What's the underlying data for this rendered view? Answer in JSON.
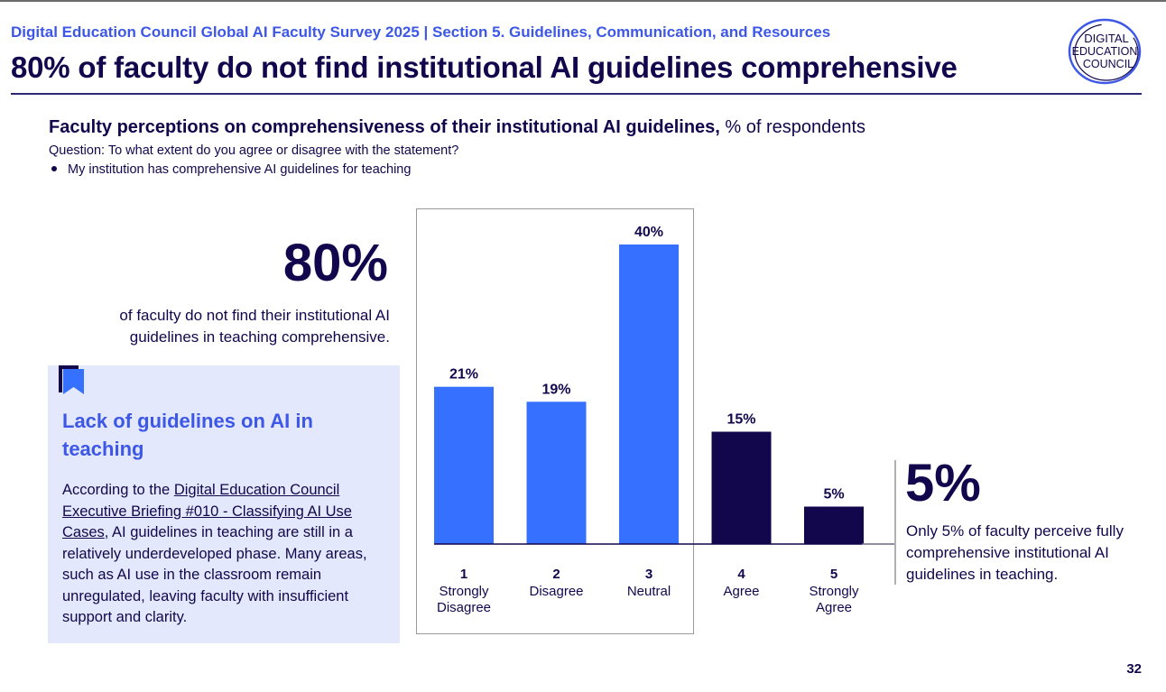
{
  "header": {
    "kicker": "Digital Education Council Global AI Faculty Survey 2025 | Section 5. Guidelines, Communication, and Resources",
    "headline": "80% of faculty do not find institutional AI guidelines comprehensive"
  },
  "logo": {
    "line1": "DIGITAL",
    "line2": "EDUCATION",
    "line3": "COUNCIL"
  },
  "chart_header": {
    "title_bold": "Faculty perceptions on comprehensiveness of their institutional AI guidelines,",
    "title_unit": " % of respondents",
    "question": "Question: To what extent do you agree or disagree with the statement?",
    "statement": "My institution has comprehensive AI guidelines for teaching"
  },
  "highlight_left": {
    "value": "80%",
    "description": "of faculty do not find their institutional AI guidelines in teaching comprehensive."
  },
  "callout": {
    "icon": "bookmark-icon",
    "title": "Lack of guidelines on AI in teaching",
    "body_prefix": "According to the ",
    "link_text": "Digital Education Council Executive Briefing #010 - Classifying AI Use Cases",
    "body_suffix": ", AI guidelines in teaching are still in a relatively underdeveloped phase. Many areas, such as AI use in the classroom remain unregulated, leaving faculty with insufficient support and clarity."
  },
  "highlight_right": {
    "value": "5%",
    "description": "Only 5% of faculty perceive fully comprehensive institutional AI guidelines in teaching."
  },
  "page_number": "32",
  "colors": {
    "light_bar": "#3670ff",
    "dark_bar": "#12074d",
    "accent_text": "#3d57e6",
    "callout_bg": "#e3e8fc"
  },
  "chart_data": {
    "type": "bar",
    "categories": [
      "1",
      "2",
      "3",
      "4",
      "5"
    ],
    "category_labels": [
      "Strongly Disagree",
      "Disagree",
      "Neutral",
      "Agree",
      "Strongly Agree"
    ],
    "values": [
      21,
      19,
      40,
      15,
      5
    ],
    "value_labels": [
      "21%",
      "19%",
      "40%",
      "15%",
      "5%"
    ],
    "bar_colors": [
      "#3670ff",
      "#3670ff",
      "#3670ff",
      "#12074d",
      "#12074d"
    ],
    "ylim": [
      0,
      40
    ],
    "grid": false,
    "title": "Faculty perceptions on comprehensiveness of their institutional AI guidelines, % of respondents"
  }
}
